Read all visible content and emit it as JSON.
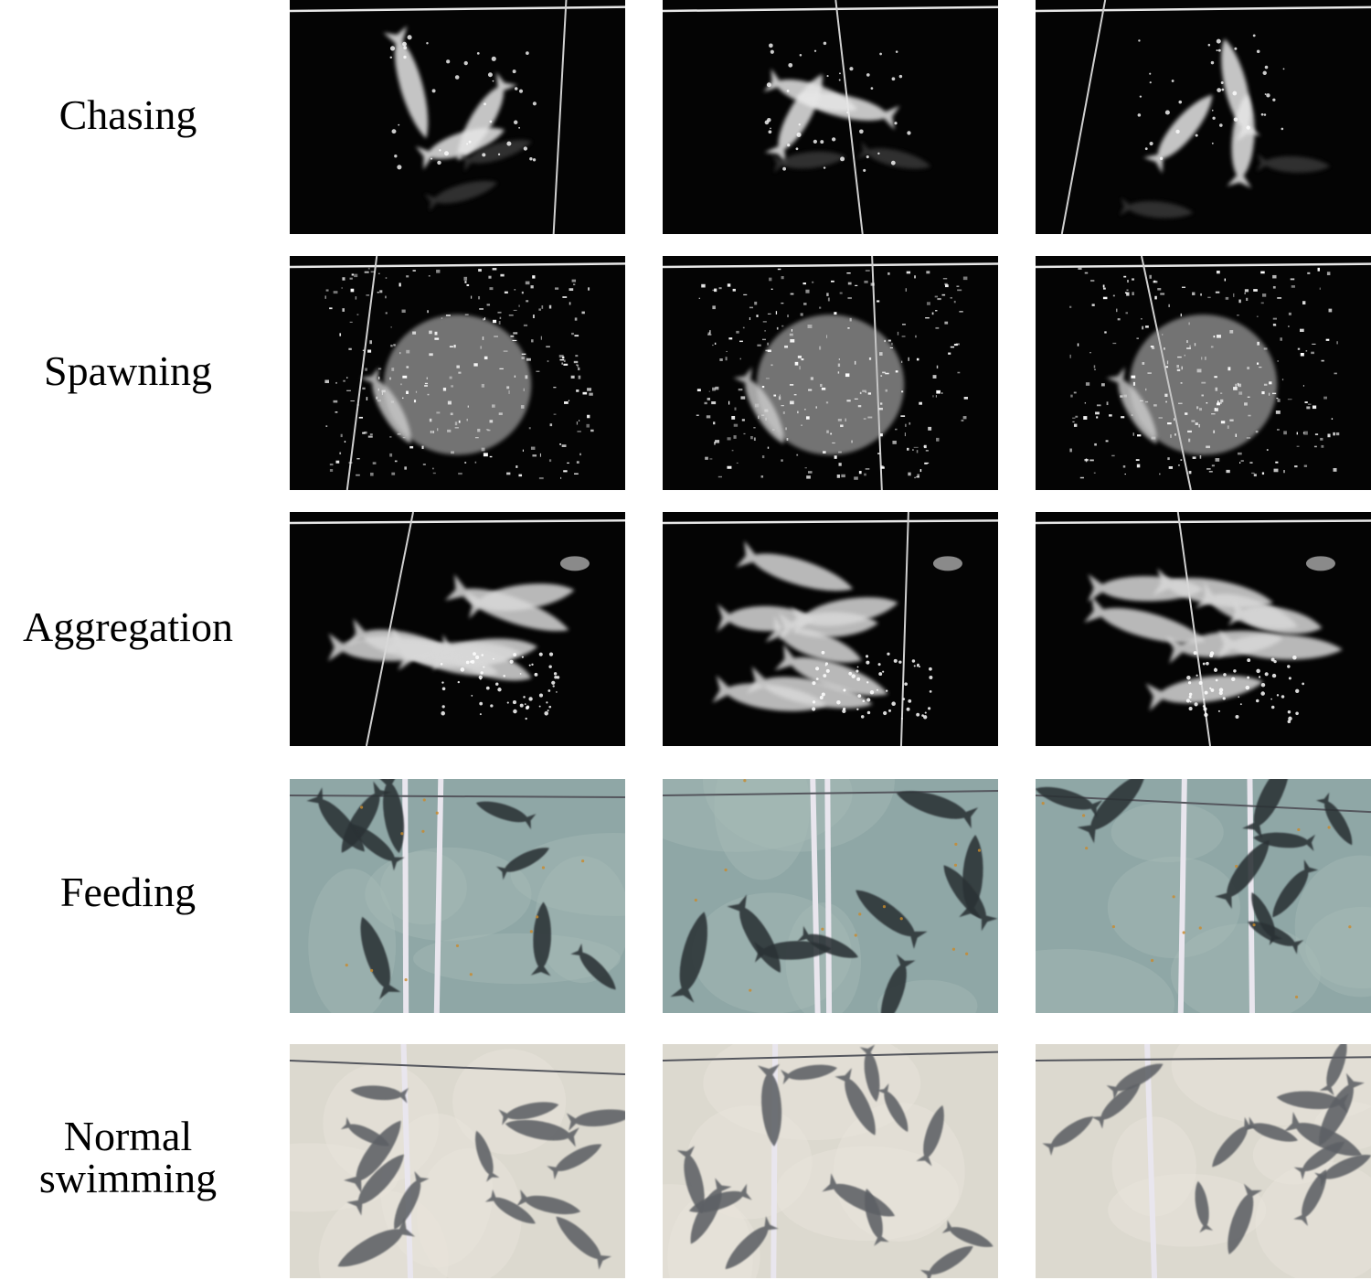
{
  "rows": [
    {
      "label": [
        "Chasing"
      ],
      "style": "dark",
      "kind": "chasing"
    },
    {
      "label": [
        "Spawning"
      ],
      "style": "dark",
      "kind": "spawning"
    },
    {
      "label": [
        "Aggregation"
      ],
      "style": "dark",
      "kind": "aggregation"
    },
    {
      "label": [
        "Feeding"
      ],
      "style": "green",
      "kind": "feeding"
    },
    {
      "label": [
        "Normal",
        "swimming"
      ],
      "style": "light",
      "kind": "normal"
    }
  ],
  "colors": {
    "dark_bg": "#040404",
    "feeding_water": "#8fa7a6",
    "normal_water": "#dcd9cf",
    "fish_dark": "#2b3036",
    "fish_gray": "#5d6065",
    "pipe": "#e9e6ee"
  }
}
